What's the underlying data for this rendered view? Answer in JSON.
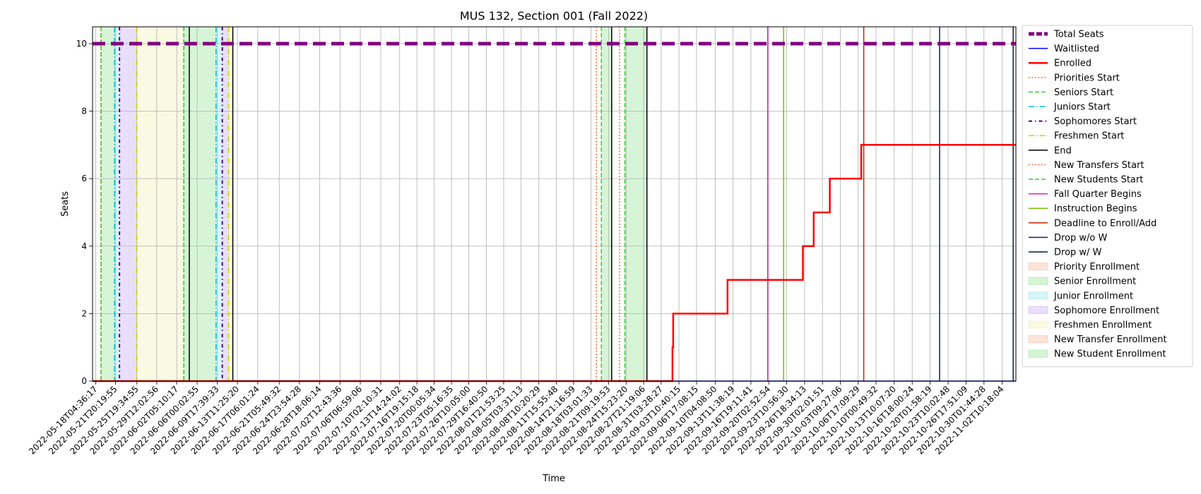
{
  "chart_data": {
    "type": "line",
    "title": "MUS 132, Section 001 (Fall 2022)",
    "xlabel": "Time",
    "ylabel": "Seats",
    "x_range": [
      "2022-05-17T14:00:00",
      "2022-11-05T00:00:00"
    ],
    "ylim": [
      0,
      10.5
    ],
    "y_ticks": [
      0,
      2,
      4,
      6,
      8,
      10
    ],
    "grid": true,
    "legend_position": "outside-right",
    "x_ticks": [
      "2022-05-18T04:36:17",
      "2022-05-21T20:19:55",
      "2022-05-25T19:34:55",
      "2022-05-29T12:02:56",
      "2022-06-02T05:10:17",
      "2022-06-06T00:02:55",
      "2022-06-09T17:39:33",
      "2022-06-13T11:25:20",
      "2022-06-17T06:01:24",
      "2022-06-21T05:49:32",
      "2022-06-24T23:54:28",
      "2022-06-28T18:06:14",
      "2022-07-02T12:43:36",
      "2022-07-06T06:59:06",
      "2022-07-10T02:10:31",
      "2022-07-13T14:24:02",
      "2022-07-16T19:15:18",
      "2022-07-20T00:05:34",
      "2022-07-23T05:16:35",
      "2022-07-26T10:05:00",
      "2022-07-29T16:40:50",
      "2022-08-01T21:53:25",
      "2022-08-05T03:31:13",
      "2022-08-08T10:20:29",
      "2022-08-11T15:55:48",
      "2022-08-14T21:16:59",
      "2022-08-18T03:01:33",
      "2022-08-21T09:19:53",
      "2022-08-24T15:23:20",
      "2022-08-27T21:19:06",
      "2022-08-31T03:28:27",
      "2022-09-03T10:40:15",
      "2022-09-06T17:08:15",
      "2022-09-10T04:08:50",
      "2022-09-13T11:38:19",
      "2022-09-16T19:11:41",
      "2022-09-20T02:52:54",
      "2022-09-23T10:56:30",
      "2022-09-26T18:34:13",
      "2022-09-30T02:01:51",
      "2022-10-03T09:27:06",
      "2022-10-06T17:09:29",
      "2022-10-10T00:49:32",
      "2022-10-13T10:07:20",
      "2022-10-16T18:00:24",
      "2022-10-20T01:58:19",
      "2022-10-23T10:02:48",
      "2022-10-26T17:51:09",
      "2022-10-30T01:44:28",
      "2022-11-02T10:18:04"
    ],
    "series": [
      {
        "name": "Total Seats",
        "color": "#800080",
        "style": "dashed-thick",
        "points": [
          [
            "2022-05-17T14:00:00",
            10
          ],
          [
            "2022-11-05T00:00:00",
            10
          ]
        ]
      },
      {
        "name": "Waitlisted",
        "color": "#0000ff",
        "style": "solid",
        "points": [
          [
            "2022-05-17T14:00:00",
            0
          ],
          [
            "2022-11-05T00:00:00",
            0
          ]
        ]
      },
      {
        "name": "Enrolled",
        "color": "#ff0000",
        "style": "solid-thick",
        "step": true,
        "points": [
          [
            "2022-05-17T14:00:00",
            0
          ],
          [
            "2022-09-02T06:00:00",
            0
          ],
          [
            "2022-09-02T06:00:00",
            1
          ],
          [
            "2022-09-02T09:00:00",
            1
          ],
          [
            "2022-09-02T09:00:00",
            2
          ],
          [
            "2022-09-12T11:00:00",
            2
          ],
          [
            "2022-09-12T11:00:00",
            3
          ],
          [
            "2022-09-26T11:00:00",
            3
          ],
          [
            "2022-09-26T11:00:00",
            4
          ],
          [
            "2022-09-28T11:00:00",
            4
          ],
          [
            "2022-09-28T11:00:00",
            5
          ],
          [
            "2022-10-01T11:00:00",
            5
          ],
          [
            "2022-10-01T11:00:00",
            6
          ],
          [
            "2022-10-07T07:00:00",
            6
          ],
          [
            "2022-10-07T07:00:00",
            7
          ],
          [
            "2022-11-05T00:00:00",
            7
          ]
        ]
      }
    ],
    "event_lines": [
      {
        "name": "Priorities Start",
        "color": "#ff4500",
        "style": "dotted",
        "x": [
          "2022-05-19T03:00:00",
          "2022-06-03T12:00:00",
          "2022-08-19T03:00:00",
          "2022-08-23T10:00:00"
        ]
      },
      {
        "name": "Seniors Start",
        "color": "#32cd32",
        "style": "dashed",
        "x": [
          "2022-05-19T04:00:00",
          "2022-06-03T13:00:00",
          "2022-08-20T01:00:00",
          "2022-08-24T10:00:00"
        ]
      },
      {
        "name": "Juniors Start",
        "color": "#00bcd4",
        "style": "dashdot",
        "x": [
          "2022-05-21T16:00:00",
          "2022-06-09T12:00:00"
        ]
      },
      {
        "name": "Sophomores Start",
        "color": "#4b0082",
        "style": "dashdot-dense",
        "x": [
          "2022-05-22T14:00:00",
          "2022-06-10T16:00:00"
        ]
      },
      {
        "name": "Freshmen Start",
        "color": "#cccc00",
        "style": "dashdot",
        "x": [
          "2022-05-25T19:00:00",
          "2022-06-11T20:00:00"
        ]
      },
      {
        "name": "End",
        "color": "#000000",
        "style": "solid",
        "x": [
          "2022-06-04T13:00:00",
          "2022-06-12T15:00:00",
          "2022-08-21T23:00:00",
          "2022-08-28T12:00:00"
        ]
      },
      {
        "name": "New Transfers Start",
        "color": "#ff4500",
        "style": "dotted",
        "x": []
      },
      {
        "name": "New Students Start",
        "color": "#32cd32",
        "style": "dashed",
        "x": []
      },
      {
        "name": "Fall Quarter Begins",
        "color": "#e01ab5",
        "style": "solid",
        "x": [
          "2022-09-19T22:00:00"
        ]
      },
      {
        "name": "Instruction Begins",
        "color": "#7cbb00",
        "style": "solid",
        "x": [
          "2022-09-22T21:00:00"
        ]
      },
      {
        "name": "Deadline to Enroll/Add",
        "color": "#cc2200",
        "style": "solid",
        "x": [
          "2022-10-07T18:00:00"
        ]
      },
      {
        "name": "Drop w/o W",
        "color": "#191970",
        "style": "solid",
        "x": [
          "2022-10-21T20:00:00"
        ]
      },
      {
        "name": "Drop w/ W",
        "color": "#0b1a33",
        "style": "solid",
        "x": [
          "2022-11-04T12:00:00"
        ]
      }
    ],
    "spans": [
      {
        "name": "Priority Enrollment",
        "color": "#f4a582",
        "ranges": []
      },
      {
        "name": "Senior Enrollment",
        "color": "#77dd77",
        "ranges": [
          [
            "2022-05-19T04:00:00",
            "2022-05-21T16:00:00"
          ],
          [
            "2022-06-03T13:00:00",
            "2022-06-09T12:00:00"
          ],
          [
            "2022-08-20T01:00:00",
            "2022-08-21T23:00:00"
          ]
        ]
      },
      {
        "name": "Junior Enrollment",
        "color": "#7fdfe8",
        "ranges": [
          [
            "2022-05-21T16:00:00",
            "2022-05-22T14:00:00"
          ],
          [
            "2022-06-09T12:00:00",
            "2022-06-10T16:00:00"
          ]
        ]
      },
      {
        "name": "Sophomore Enrollment",
        "color": "#b794f4",
        "ranges": [
          [
            "2022-05-22T14:00:00",
            "2022-05-25T19:00:00"
          ],
          [
            "2022-06-10T16:00:00",
            "2022-06-11T20:00:00"
          ]
        ]
      },
      {
        "name": "Freshmen Enrollment",
        "color": "#f0ec9c",
        "ranges": [
          [
            "2022-05-25T19:00:00",
            "2022-06-03T12:00:00"
          ],
          [
            "2022-06-11T20:00:00",
            "2022-06-12T15:00:00"
          ]
        ]
      },
      {
        "name": "New Transfer Enrollment",
        "color": "#f4a582",
        "ranges": []
      },
      {
        "name": "New Student Enrollment",
        "color": "#77dd77",
        "ranges": [
          [
            "2022-08-24T10:00:00",
            "2022-08-28T12:00:00"
          ]
        ]
      }
    ],
    "legend": [
      {
        "label": "Total Seats",
        "kind": "line",
        "color": "#800080",
        "style": "dashed-thick"
      },
      {
        "label": "Waitlisted",
        "kind": "line",
        "color": "#0000ff",
        "style": "solid"
      },
      {
        "label": "Enrolled",
        "kind": "line",
        "color": "#ff0000",
        "style": "solid-thick"
      },
      {
        "label": "Priorities Start",
        "kind": "line",
        "color": "#ff4500",
        "style": "dotted"
      },
      {
        "label": "Seniors Start",
        "kind": "line",
        "color": "#32cd32",
        "style": "dashed"
      },
      {
        "label": "Juniors Start",
        "kind": "line",
        "color": "#00bcd4",
        "style": "dashdot"
      },
      {
        "label": "Sophomores Start",
        "kind": "line",
        "color": "#4b0082",
        "style": "dashdot-dense"
      },
      {
        "label": "Freshmen Start",
        "kind": "line",
        "color": "#cccc00",
        "style": "dashdot"
      },
      {
        "label": "End",
        "kind": "line",
        "color": "#000000",
        "style": "solid"
      },
      {
        "label": "New Transfers Start",
        "kind": "line",
        "color": "#ff4500",
        "style": "dotted"
      },
      {
        "label": "New Students Start",
        "kind": "line",
        "color": "#32cd32",
        "style": "dashed"
      },
      {
        "label": "Fall Quarter Begins",
        "kind": "line",
        "color": "#e01ab5",
        "style": "solid"
      },
      {
        "label": "Instruction Begins",
        "kind": "line",
        "color": "#7cbb00",
        "style": "solid"
      },
      {
        "label": "Deadline to Enroll/Add",
        "kind": "line",
        "color": "#cc2200",
        "style": "solid"
      },
      {
        "label": "Drop w/o W",
        "kind": "line",
        "color": "#191970",
        "style": "solid"
      },
      {
        "label": "Drop w/ W",
        "kind": "line",
        "color": "#0b1a33",
        "style": "solid"
      },
      {
        "label": "Priority Enrollment",
        "kind": "patch",
        "color": "#f4a582"
      },
      {
        "label": "Senior Enrollment",
        "kind": "patch",
        "color": "#77dd77"
      },
      {
        "label": "Junior Enrollment",
        "kind": "patch",
        "color": "#7fdfe8"
      },
      {
        "label": "Sophomore Enrollment",
        "kind": "patch",
        "color": "#b794f4"
      },
      {
        "label": "Freshmen Enrollment",
        "kind": "patch",
        "color": "#f0ec9c"
      },
      {
        "label": "New Transfer Enrollment",
        "kind": "patch",
        "color": "#f4a582"
      },
      {
        "label": "New Student Enrollment",
        "kind": "patch",
        "color": "#77dd77"
      }
    ]
  }
}
